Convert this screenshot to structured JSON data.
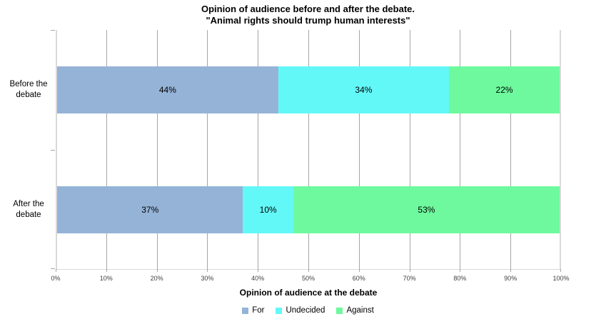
{
  "chart_data": {
    "type": "bar",
    "orientation": "horizontal",
    "stacked": true,
    "title_line1": "Opinion of audience before and after the debate.",
    "title_line2": "\"Animal rights should trump human interests\"",
    "categories": [
      "Before the debate",
      "After the debate"
    ],
    "series": [
      {
        "name": "For",
        "color": "#95B3D7",
        "values": [
          44,
          37
        ]
      },
      {
        "name": "Undecided",
        "color": "#63F8F8",
        "values": [
          34,
          10
        ]
      },
      {
        "name": "Against",
        "color": "#6EF99E",
        "values": [
          22,
          53
        ]
      }
    ],
    "xlabel": "Opinion of audience at the debate",
    "xlim": [
      0,
      100
    ],
    "xticks": [
      0,
      10,
      20,
      30,
      40,
      50,
      60,
      70,
      80,
      90,
      100
    ],
    "xtick_suffix": "%",
    "value_label_suffix": "%",
    "grid": true,
    "legend_position": "bottom",
    "colors": {
      "axis_line": "#D9D9D9",
      "gridline": "#A6A6A6",
      "tick_label": "#404040",
      "text": "#000000",
      "background": "#FFFFFF"
    }
  }
}
